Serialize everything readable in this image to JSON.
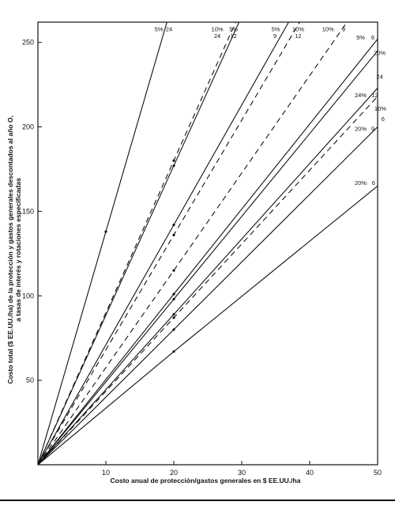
{
  "chart_data": {
    "type": "line",
    "title": "",
    "xlabel": "Costo anual de protección/gastos generales en $ EE.UU./ha",
    "ylabel": "Costo total ($ EE.UU./ha) de la protección y gastos generales descontados al año O, a tasas de interés y rotaciones especificadas",
    "xlim": [
      0,
      50
    ],
    "ylim": [
      0,
      262
    ],
    "x_ticks": [
      "10",
      "20",
      "30",
      "40",
      "50"
    ],
    "y_ticks": [
      "50",
      "100",
      "150",
      "200",
      "250"
    ],
    "grid": false,
    "legend": "none",
    "line_color": "#111111",
    "series": [
      {
        "name": "5% 24",
        "style": "solid",
        "x": [
          0,
          10,
          20
        ],
        "y": [
          0,
          138,
          276
        ]
      },
      {
        "name": "10% 24",
        "style": "dashed",
        "x": [
          0,
          20,
          40
        ],
        "y": [
          0,
          180,
          360
        ]
      },
      {
        "name": "5% 12",
        "style": "solid",
        "x": [
          0,
          20,
          40
        ],
        "y": [
          0,
          177,
          354
        ]
      },
      {
        "name": "5% 9",
        "style": "solid",
        "x": [
          0,
          20,
          40
        ],
        "y": [
          0,
          142,
          284
        ]
      },
      {
        "name": "10% 12",
        "style": "dashed",
        "x": [
          0,
          20,
          40
        ],
        "y": [
          0,
          136,
          272
        ]
      },
      {
        "name": "10% 9",
        "style": "dashed",
        "x": [
          0,
          20,
          50
        ],
        "y": [
          0,
          115,
          288
        ]
      },
      {
        "name": "5% 6",
        "style": "solid",
        "x": [
          0,
          20,
          50
        ],
        "y": [
          0,
          101,
          252
        ]
      },
      {
        "name": "20% 24",
        "style": "solid",
        "x": [
          0,
          20,
          50
        ],
        "y": [
          0,
          98,
          245
        ]
      },
      {
        "name": "24% 12",
        "style": "solid",
        "x": [
          0,
          20,
          50
        ],
        "y": [
          0,
          89,
          223
        ]
      },
      {
        "name": "10% 6",
        "style": "dashed",
        "x": [
          0,
          20,
          50
        ],
        "y": [
          0,
          87,
          218
        ]
      },
      {
        "name": "20% 9",
        "style": "solid",
        "x": [
          0,
          20,
          50
        ],
        "y": [
          0,
          80,
          200
        ]
      },
      {
        "name": "20% 6",
        "style": "solid",
        "x": [
          0,
          20,
          50
        ],
        "y": [
          0,
          67,
          165
        ]
      }
    ],
    "annotations": [
      {
        "text": "5%",
        "x": 17.8,
        "y": 258
      },
      {
        "text": "24",
        "x": 19.3,
        "y": 258
      },
      {
        "text": "10%",
        "x": 26.4,
        "y": 258
      },
      {
        "text": "24",
        "x": 26.4,
        "y": 254
      },
      {
        "text": "5%",
        "x": 28.8,
        "y": 258
      },
      {
        "text": "12",
        "x": 28.8,
        "y": 254
      },
      {
        "text": "5%",
        "x": 35.0,
        "y": 258
      },
      {
        "text": "9",
        "x": 34.9,
        "y": 254
      },
      {
        "text": "10%",
        "x": 38.3,
        "y": 258
      },
      {
        "text": "12",
        "x": 38.3,
        "y": 254
      },
      {
        "text": "10%",
        "x": 42.7,
        "y": 258
      },
      {
        "text": "9",
        "x": 45.0,
        "y": 258
      },
      {
        "text": "5%",
        "x": 47.5,
        "y": 253
      },
      {
        "text": "6",
        "x": 49.3,
        "y": 253
      },
      {
        "text": "20%",
        "x": 50.3,
        "y": 244
      },
      {
        "text": "24",
        "x": 50.3,
        "y": 230
      },
      {
        "text": "24%",
        "x": 47.5,
        "y": 219
      },
      {
        "text": "12",
        "x": 49.6,
        "y": 219
      },
      {
        "text": "10%",
        "x": 50.4,
        "y": 211
      },
      {
        "text": "6",
        "x": 50.8,
        "y": 205
      },
      {
        "text": "20%",
        "x": 47.5,
        "y": 199
      },
      {
        "text": "9",
        "x": 49.3,
        "y": 199
      },
      {
        "text": "20%",
        "x": 47.5,
        "y": 167
      },
      {
        "text": "6",
        "x": 49.4,
        "y": 167
      }
    ]
  }
}
